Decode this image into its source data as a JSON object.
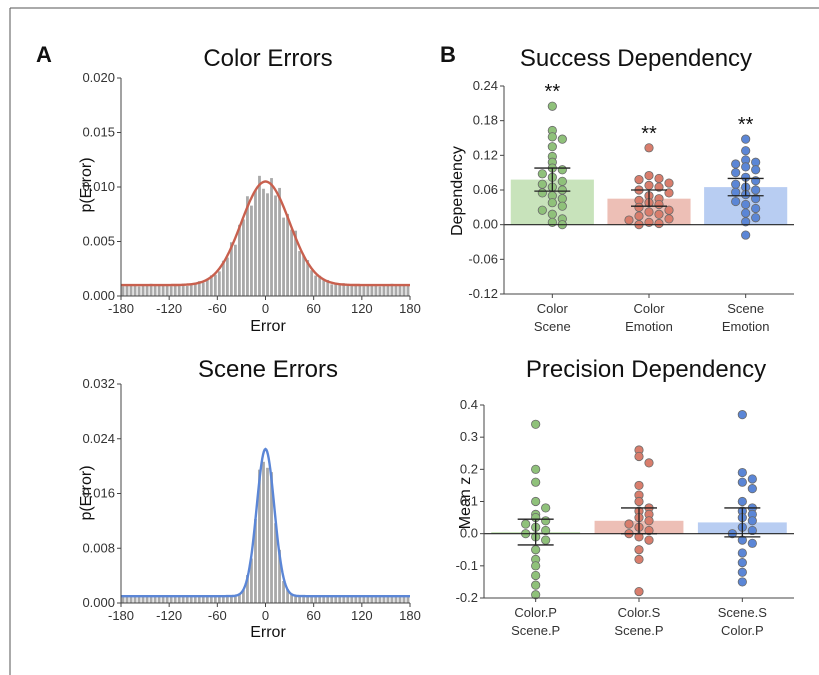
{
  "figure": {
    "panel_labels": [
      "A",
      "B"
    ]
  },
  "chart_data": [
    {
      "id": "color-errors",
      "type": "bar",
      "title": "Color Errors",
      "xlabel": "Error",
      "ylabel": "p(Error)",
      "xlim": [
        -180,
        180
      ],
      "ylim": [
        0,
        0.02
      ],
      "xticks": [
        "-180",
        "-120",
        "-60",
        "0",
        "60",
        "120",
        "180"
      ],
      "yticks": [
        "0.000",
        "0.005",
        "0.010",
        "0.015",
        "0.020"
      ],
      "bin_width": 5,
      "bar_color": "#a9a9a9",
      "curve_color": "#c8604e",
      "fit": {
        "mu": 0,
        "sigma": 30,
        "peak": 0.0105,
        "baseline": 0.001
      }
    },
    {
      "id": "scene-errors",
      "type": "bar",
      "title": "Scene Errors",
      "xlabel": "Error",
      "ylabel": "p(Error)",
      "xlim": [
        -180,
        180
      ],
      "ylim": [
        0,
        0.032
      ],
      "xticks": [
        "-180",
        "-120",
        "-60",
        "0",
        "60",
        "120",
        "180"
      ],
      "yticks": [
        "0.000",
        "0.008",
        "0.016",
        "0.024",
        "0.032"
      ],
      "bin_width": 5,
      "bar_color": "#a9a9a9",
      "curve_color": "#5b86d6",
      "fit": {
        "mu": 0,
        "sigma": 11,
        "peak": 0.0225,
        "baseline": 0.001
      }
    },
    {
      "id": "success-dependency",
      "type": "bar",
      "title": "Success Dependency",
      "ylabel": "Dependency",
      "ylim": [
        -0.12,
        0.24
      ],
      "yticks": [
        "0.24",
        "0.18",
        "0.12",
        "0.06",
        "0.00",
        "-0.06",
        "-0.12"
      ],
      "categories": [
        [
          "Color",
          "Scene"
        ],
        [
          "Color",
          "Emotion"
        ],
        [
          "Scene",
          "Emotion"
        ]
      ],
      "bars": [
        {
          "mean": 0.078,
          "ci": [
            0.058,
            0.098
          ],
          "sig": "**",
          "fill": "#c8e3bb",
          "point": "#8fc17a",
          "points": [
            0.205,
            0.163,
            0.152,
            0.148,
            0.135,
            0.118,
            0.108,
            0.098,
            0.095,
            0.088,
            0.082,
            0.075,
            0.07,
            0.065,
            0.06,
            0.055,
            0.05,
            0.045,
            0.038,
            0.032,
            0.025,
            0.018,
            0.01,
            0.004,
            0.0
          ]
        },
        {
          "mean": 0.045,
          "ci": [
            0.032,
            0.06
          ],
          "sig": "**",
          "fill": "#edbfb6",
          "point": "#d97d6c",
          "points": [
            0.133,
            0.085,
            0.08,
            0.078,
            0.072,
            0.068,
            0.065,
            0.06,
            0.055,
            0.05,
            0.045,
            0.042,
            0.038,
            0.035,
            0.03,
            0.025,
            0.022,
            0.018,
            0.015,
            0.01,
            0.008,
            0.004,
            0.002,
            0.0
          ]
        },
        {
          "mean": 0.065,
          "ci": [
            0.05,
            0.08
          ],
          "sig": "**",
          "fill": "#b8cdf2",
          "point": "#5b86d6",
          "points": [
            0.148,
            0.128,
            0.112,
            0.108,
            0.105,
            0.1,
            0.095,
            0.09,
            0.082,
            0.076,
            0.07,
            0.065,
            0.06,
            0.056,
            0.052,
            0.045,
            0.04,
            0.035,
            0.028,
            0.02,
            0.012,
            0.005,
            -0.018
          ]
        }
      ]
    },
    {
      "id": "precision-dependency",
      "type": "bar",
      "title": "Precision Dependency",
      "ylabel": "Mean z",
      "ylim": [
        -0.2,
        0.4
      ],
      "yticks": [
        "0.4",
        "0.3",
        "0.2",
        "0.1",
        "0.0",
        "-0.1",
        "-0.2"
      ],
      "categories": [
        [
          "Color.P",
          "Scene.P"
        ],
        [
          "Color.S",
          "Scene.P"
        ],
        [
          "Scene.S",
          "Color.P"
        ]
      ],
      "bars": [
        {
          "mean": 0.005,
          "ci": [
            -0.035,
            0.045
          ],
          "fill": "#c8e3bb",
          "point": "#8fc17a",
          "points": [
            0.34,
            0.2,
            0.16,
            0.1,
            0.08,
            0.06,
            0.05,
            0.04,
            0.03,
            0.02,
            0.01,
            0.0,
            -0.01,
            -0.02,
            -0.05,
            -0.08,
            -0.1,
            -0.13,
            -0.16,
            -0.19
          ]
        },
        {
          "mean": 0.04,
          "ci": [
            0.0,
            0.08
          ],
          "fill": "#edbfb6",
          "point": "#d97d6c",
          "points": [
            0.26,
            0.24,
            0.22,
            0.15,
            0.12,
            0.1,
            0.08,
            0.07,
            0.06,
            0.05,
            0.04,
            0.03,
            0.02,
            0.01,
            0.0,
            -0.01,
            -0.02,
            -0.05,
            -0.08,
            -0.18
          ]
        },
        {
          "mean": 0.035,
          "ci": [
            -0.01,
            0.08
          ],
          "fill": "#b8cdf2",
          "point": "#5b86d6",
          "points": [
            0.37,
            0.19,
            0.17,
            0.16,
            0.14,
            0.1,
            0.08,
            0.07,
            0.06,
            0.05,
            0.04,
            0.02,
            0.01,
            0.0,
            -0.02,
            -0.03,
            -0.06,
            -0.09,
            -0.12,
            -0.15
          ]
        }
      ]
    }
  ]
}
